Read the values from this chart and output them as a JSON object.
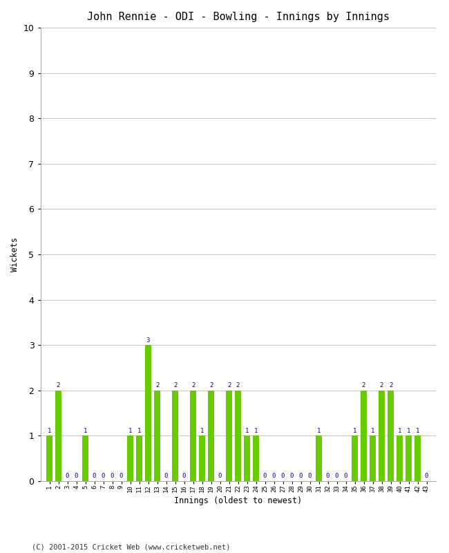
{
  "title": "John Rennie - ODI - Bowling - Innings by Innings",
  "xlabel": "Innings (oldest to newest)",
  "ylabel": "Wickets",
  "ylim": [
    0,
    10
  ],
  "yticks": [
    0,
    1,
    2,
    3,
    4,
    5,
    6,
    7,
    8,
    9,
    10
  ],
  "bar_color": "#66cc00",
  "label_color": "#000099",
  "background_color": "#ffffff",
  "grid_color": "#bbbbbb",
  "copyright": "(C) 2001-2015 Cricket Web (www.cricketweb.net)",
  "innings": [
    1,
    2,
    3,
    4,
    5,
    6,
    7,
    8,
    9,
    10,
    11,
    12,
    13,
    14,
    15,
    16,
    17,
    18,
    19,
    20,
    21,
    22,
    23,
    24,
    25,
    26,
    27,
    28,
    29,
    30,
    31,
    32,
    33,
    34,
    35,
    36,
    37,
    38,
    39,
    40,
    41,
    42,
    43
  ],
  "wickets": [
    1,
    2,
    0,
    0,
    1,
    0,
    0,
    0,
    0,
    1,
    1,
    3,
    2,
    0,
    2,
    0,
    2,
    1,
    2,
    0,
    2,
    2,
    1,
    1,
    0,
    0,
    0,
    0,
    0,
    0,
    1,
    0,
    0,
    0,
    1,
    2,
    1,
    2,
    2,
    1,
    1,
    1,
    0
  ]
}
